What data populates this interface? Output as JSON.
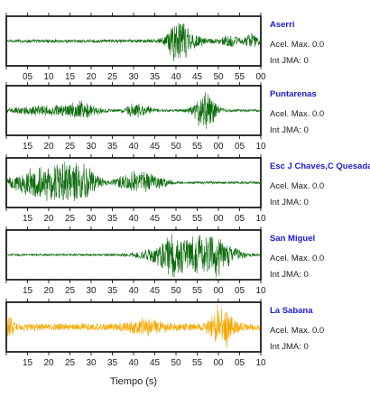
{
  "chart_data": {
    "type": "line",
    "xlabel": "Tiempo (s)",
    "colors": {
      "trace_green": "#0b6b0b",
      "trace_orange": "#f5a800",
      "station_label": "#1a1adb",
      "frame": "#000000"
    },
    "panels": [
      {
        "station": "Aserri",
        "acel_label": "Acel. Max. 0.0",
        "int_label": "Int JMA: 0",
        "color": "#0b6b0b",
        "x_ticks": [
          "05",
          "10",
          "15",
          "20",
          "25",
          "30",
          "35",
          "40",
          "45",
          "50",
          "55",
          "00"
        ],
        "xlim_seconds": [
          0,
          60
        ],
        "noise": 0.08,
        "events": [
          {
            "t": 40.5,
            "amp": 0.95,
            "width": 1.5
          },
          {
            "t": 42.5,
            "amp": 0.35,
            "width": 3.0
          },
          {
            "t": 53.0,
            "amp": 0.25,
            "width": 1.5
          },
          {
            "t": 58.0,
            "amp": 0.3,
            "width": 1.2
          }
        ]
      },
      {
        "station": "Puntarenas",
        "acel_label": "Acel. Max. 0.0",
        "int_label": "Int JMA: 0",
        "color": "#0b6b0b",
        "x_ticks": [
          "15",
          "20",
          "25",
          "30",
          "35",
          "40",
          "45",
          "50",
          "55",
          "00",
          "05",
          "10"
        ],
        "xlim_seconds": [
          0,
          60
        ],
        "noise": 0.06,
        "events": [
          {
            "t": 9.0,
            "amp": 0.22,
            "width": 5.0
          },
          {
            "t": 18.0,
            "amp": 0.35,
            "width": 2.5
          },
          {
            "t": 31.0,
            "amp": 0.35,
            "width": 2.0
          },
          {
            "t": 47.0,
            "amp": 0.95,
            "width": 1.8
          }
        ]
      },
      {
        "station": "Esc J Chaves,C Quesada",
        "acel_label": "Acel. Max. 0.0",
        "int_label": "Int JMA: 0",
        "color": "#0b6b0b",
        "x_ticks": [
          "15",
          "20",
          "25",
          "30",
          "35",
          "40",
          "45",
          "50",
          "55",
          "00",
          "05",
          "10"
        ],
        "xlim_seconds": [
          0,
          60
        ],
        "noise": 0.06,
        "events": [
          {
            "t": 4.5,
            "amp": 0.35,
            "width": 3.5
          },
          {
            "t": 12.0,
            "amp": 1.0,
            "width": 4.0
          },
          {
            "t": 18.0,
            "amp": 0.55,
            "width": 2.5
          },
          {
            "t": 30.5,
            "amp": 0.5,
            "width": 3.0
          },
          {
            "t": 36.0,
            "amp": 0.2,
            "width": 2.0
          }
        ]
      },
      {
        "station": "San Miguel",
        "acel_label": "Acel. Max. 0.0",
        "int_label": "Int JMA: 0",
        "color": "#0b6b0b",
        "x_ticks": [
          "15",
          "20",
          "25",
          "30",
          "35",
          "40",
          "45",
          "50",
          "55",
          "00",
          "05",
          "10"
        ],
        "xlim_seconds": [
          0,
          60
        ],
        "noise": 0.05,
        "events": [
          {
            "t": 41.0,
            "amp": 0.5,
            "width": 6.0
          },
          {
            "t": 44.0,
            "amp": 0.9,
            "width": 4.0
          },
          {
            "t": 48.0,
            "amp": 0.7,
            "width": 4.0
          }
        ]
      },
      {
        "station": "La Sabana",
        "acel_label": "Acel. Max. 0.0",
        "int_label": "Int JMA: 0",
        "color": "#f5a800",
        "x_ticks": [
          "15",
          "20",
          "25",
          "30",
          "35",
          "40",
          "45",
          "50",
          "55",
          "00",
          "05",
          "10"
        ],
        "xlim_seconds": [
          0,
          60
        ],
        "noise": 0.18,
        "events": [
          {
            "t": 0.3,
            "amp": 0.4,
            "width": 0.8
          },
          {
            "t": 33.0,
            "amp": 0.25,
            "width": 3.0
          },
          {
            "t": 51.0,
            "amp": 0.95,
            "width": 1.8
          }
        ]
      }
    ]
  }
}
